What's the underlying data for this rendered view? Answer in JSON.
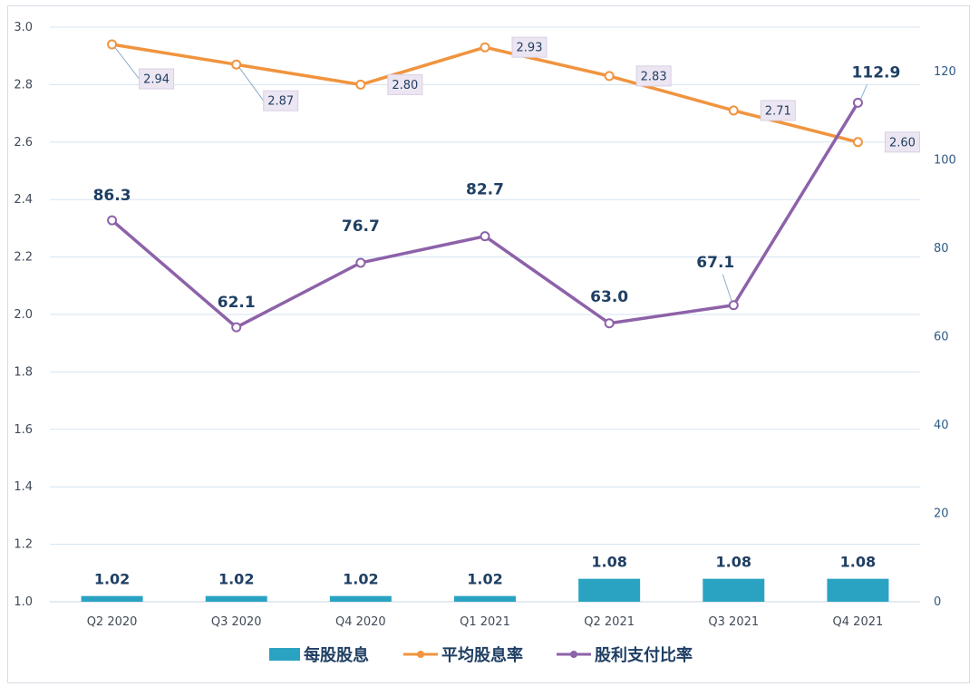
{
  "chart_data": {
    "type": "bar+line",
    "categories": [
      "Q2 2020",
      "Q3 2020",
      "Q4 2020",
      "Q1 2021",
      "Q2 2021",
      "Q3 2021",
      "Q4 2021"
    ],
    "series": [
      {
        "name": "每股股息",
        "type": "bar",
        "axis": "left",
        "values": [
          1.02,
          1.02,
          1.02,
          1.02,
          1.08,
          1.08,
          1.08
        ],
        "labels": [
          "1.02",
          "1.02",
          "1.02",
          "1.02",
          "1.08",
          "1.08",
          "1.08"
        ],
        "color": "#2aa3c3"
      },
      {
        "name": "平均股息率",
        "type": "line",
        "axis": "left",
        "values": [
          2.94,
          2.87,
          2.8,
          2.93,
          2.83,
          2.71,
          2.6
        ],
        "labels": [
          "2.94",
          "2.87",
          "2.80",
          "2.93",
          "2.83",
          "2.71",
          "2.60"
        ],
        "color": "#f0943f"
      },
      {
        "name": "股利支付比率",
        "type": "line",
        "axis": "right",
        "values": [
          86.3,
          62.1,
          76.7,
          82.7,
          63.0,
          67.1,
          112.9
        ],
        "labels": [
          "86.3",
          "62.1",
          "76.7",
          "82.7",
          "63.0",
          "67.1",
          "112.9"
        ],
        "color": "#8d62a9"
      }
    ],
    "ylim_left": [
      1.0,
      3.0
    ],
    "yticks_left": [
      "3.0",
      "2.8",
      "2.6",
      "2.4",
      "2.2",
      "2.0",
      "1.8",
      "1.6",
      "1.4",
      "1.2",
      "1.0"
    ],
    "ylim_right": [
      0,
      130
    ],
    "yticks_right": [
      "120",
      "100",
      "80",
      "60",
      "40",
      "20",
      "0"
    ],
    "grid": true,
    "legend_position": "bottom"
  }
}
